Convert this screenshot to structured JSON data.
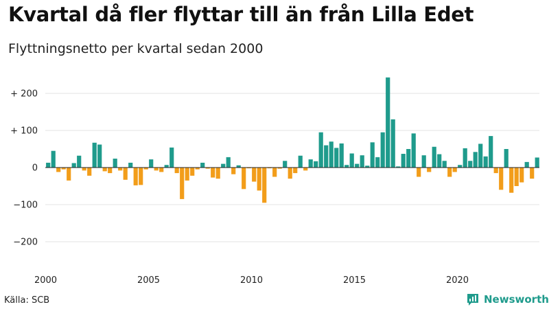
{
  "title": "Kvartal då fler flyttar till än från Lilla Edet",
  "subtitle": "Flyttningsnetto per kvartal sedan 2000",
  "source": "Källa: SCB",
  "brand": {
    "name": "Newsworthy",
    "icon": "newsworthy-logo-icon",
    "color": "#1f9b8c"
  },
  "colors": {
    "positive": "#1f9b8c",
    "negative": "#f29d1a",
    "grid": "#e3e3e3",
    "baseline": "#222222"
  },
  "chart_data": {
    "type": "bar",
    "x_start": 2000,
    "x_step": 0.25,
    "xticks": [
      2000,
      2005,
      2010,
      2015,
      2020
    ],
    "ylim": [
      -200,
      260
    ],
    "yticks": [
      {
        "value": 200,
        "label": "+ 200"
      },
      {
        "value": 100,
        "label": "+ 100"
      },
      {
        "value": 0,
        "label": "0"
      },
      {
        "value": -100,
        "label": "−100"
      },
      {
        "value": -200,
        "label": "−200"
      }
    ],
    "grid": true,
    "values": [
      13,
      45,
      -12,
      -5,
      -35,
      12,
      32,
      -8,
      -22,
      67,
      62,
      -10,
      -15,
      24,
      -8,
      -33,
      13,
      -48,
      -47,
      -5,
      22,
      -8,
      -12,
      7,
      54,
      -15,
      -85,
      -35,
      -22,
      -5,
      13,
      -3,
      -27,
      -30,
      10,
      28,
      -18,
      6,
      -58,
      -2,
      -38,
      -62,
      -95,
      -2,
      -25,
      -3,
      18,
      -30,
      -15,
      32,
      -8,
      22,
      17,
      95,
      60,
      70,
      53,
      65,
      7,
      38,
      10,
      33,
      5,
      68,
      28,
      95,
      243,
      130,
      3,
      37,
      50,
      92,
      -25,
      33,
      -12,
      56,
      36,
      18,
      -25,
      -12,
      7,
      52,
      18,
      42,
      64,
      30,
      85,
      -15,
      -60,
      50,
      -68,
      -50,
      -40,
      15,
      -30,
      27
    ]
  }
}
